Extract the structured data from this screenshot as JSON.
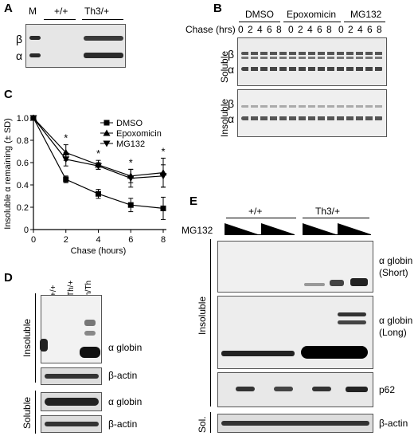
{
  "panels": {
    "a": "A",
    "b": "B",
    "c": "C",
    "d": "D",
    "e": "E"
  },
  "panel_a": {
    "lane_m": "M",
    "group_wt": "+/+",
    "group_th3": "Th3/+",
    "row_beta": "β",
    "row_alpha": "α"
  },
  "panel_b": {
    "group_dmso": "DMSO",
    "group_epox": "Epoxomicin",
    "group_mg132": "MG132",
    "chase_label": "Chase (hrs)",
    "time_points": [
      "0",
      "2",
      "4",
      "6",
      "8",
      "0",
      "2",
      "4",
      "6",
      "8",
      "0",
      "2",
      "4",
      "6",
      "8"
    ],
    "soluble": "Soluble",
    "insoluble": "Insoluble",
    "beta": "β",
    "alpha": "α"
  },
  "panel_d": {
    "lanes": [
      "+/+",
      "Th/+",
      "Th/Th"
    ],
    "insoluble": "Insoluble",
    "soluble": "Soluble",
    "alpha_globin": "α globin",
    "beta_actin": "β-actin"
  },
  "panel_e": {
    "group_wt": "+/+",
    "group_th3": "Th3/+",
    "treatment": "MG132",
    "insoluble": "Insoluble",
    "soluble_short": "Sol.",
    "alpha_globin": "α globin",
    "short": "(Short)",
    "long": "(Long)",
    "p62": "p62",
    "beta_actin": "β-actin"
  },
  "chart_data": {
    "type": "line",
    "xlabel": "Chase (hours)",
    "ylabel": "Insoluble α remaining (± SD)",
    "xlim": [
      0,
      8
    ],
    "ylim": [
      0,
      1.0
    ],
    "xticks": [
      0,
      2,
      4,
      6,
      8
    ],
    "yticks": [
      0,
      0.2,
      0.4,
      0.6,
      0.8,
      1.0
    ],
    "legend_position": "top-right",
    "significance_marker": "*",
    "significant_x": [
      2,
      4,
      6,
      8
    ],
    "series": [
      {
        "name": "DMSO",
        "marker": "square",
        "x": [
          0,
          2,
          4,
          6,
          8
        ],
        "y": [
          1.0,
          0.45,
          0.32,
          0.22,
          0.19
        ],
        "err": [
          0,
          0.03,
          0.04,
          0.06,
          0.1
        ]
      },
      {
        "name": "Epoxomicin",
        "marker": "triangle-up",
        "x": [
          0,
          2,
          4,
          6,
          8
        ],
        "y": [
          1.0,
          0.69,
          0.58,
          0.48,
          0.51
        ],
        "err": [
          0,
          0.07,
          0.04,
          0.06,
          0.13
        ]
      },
      {
        "name": "MG132",
        "marker": "triangle-down",
        "x": [
          0,
          2,
          4,
          6,
          8
        ],
        "y": [
          1.0,
          0.63,
          0.57,
          0.46,
          0.48
        ],
        "err": [
          0,
          0.06,
          0.03,
          0.08,
          0.1
        ]
      }
    ]
  }
}
